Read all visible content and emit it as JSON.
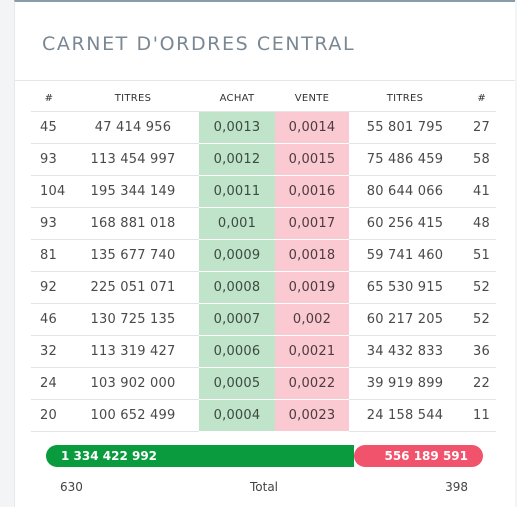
{
  "title": "CARNET D'ORDRES CENTRAL",
  "headers": [
    "#",
    "TITRES",
    "ACHAT",
    "VENTE",
    "TITRES",
    "#"
  ],
  "rows": [
    [
      "45",
      "47 414 956",
      "0,0013",
      "0,0014",
      "55 801 795",
      "27"
    ],
    [
      "93",
      "113 454 997",
      "0,0012",
      "0,0015",
      "75 486 459",
      "58"
    ],
    [
      "104",
      "195 344 149",
      "0,0011",
      "0,0016",
      "80 644 066",
      "41"
    ],
    [
      "93",
      "168 881 018",
      "0,001",
      "0,0017",
      "60 256 415",
      "48"
    ],
    [
      "81",
      "135 677 740",
      "0,0009",
      "0,0018",
      "59 741 460",
      "51"
    ],
    [
      "92",
      "225 051 071",
      "0,0008",
      "0,0019",
      "65 530 915",
      "52"
    ],
    [
      "46",
      "130 725 135",
      "0,0007",
      "0,002",
      "60 217 205",
      "52"
    ],
    [
      "32",
      "113 319 427",
      "0,0006",
      "0,0021",
      "34 432 833",
      "36"
    ],
    [
      "24",
      "103 902 000",
      "0,0005",
      "0,0022",
      "39 919 899",
      "22"
    ],
    [
      "20",
      "100 652 499",
      "0,0004",
      "0,0023",
      "24 158 544",
      "11"
    ]
  ],
  "summary": {
    "buy_total": "1 334 422 992",
    "sell_total": "556 189 591",
    "buy_share": 0.705,
    "buy_orders": "630",
    "total_label": "Total",
    "sell_orders": "398"
  },
  "colors": {
    "buy_cell": "#bfe4c9",
    "sell_cell": "#fbc9d1",
    "buy_bar": "#0b9b3f",
    "sell_bar": "#f1536d"
  }
}
